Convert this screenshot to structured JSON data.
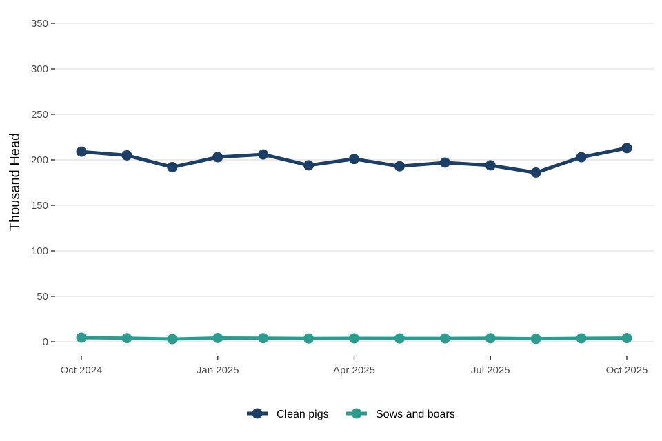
{
  "chart_data": {
    "type": "line",
    "title": "",
    "xlabel": "",
    "ylabel": "Thousand Head",
    "ylim": [
      0,
      350
    ],
    "y_ticks": [
      0,
      50,
      100,
      150,
      200,
      250,
      300,
      350
    ],
    "grid": true,
    "legend_position": "bottom",
    "x": [
      "Oct 2024",
      "Nov 2024",
      "Dec 2024",
      "Jan 2025",
      "Feb 2025",
      "Mar 2025",
      "Apr 2025",
      "May 2025",
      "Jun 2025",
      "Jul 2025",
      "Aug 2025",
      "Sep 2025",
      "Oct 2025"
    ],
    "x_tick_labels": [
      {
        "month_index": 0,
        "label": "Oct 2024"
      },
      {
        "month_index": 3,
        "label": "Jan 2025"
      },
      {
        "month_index": 6,
        "label": "Apr 2025"
      },
      {
        "month_index": 9,
        "label": "Jul 2025"
      },
      {
        "month_index": 12,
        "label": "Oct 2025"
      }
    ],
    "series": [
      {
        "name": "Clean pigs",
        "color": "#1b3f66",
        "values": [
          209,
          205,
          192,
          203,
          206,
          194,
          201,
          193,
          197,
          194,
          186,
          203,
          213
        ]
      },
      {
        "name": "Sows and boars",
        "color": "#2a9d8f",
        "values": [
          4.5,
          4,
          3,
          4.2,
          4,
          3.6,
          3.8,
          3.7,
          3.7,
          3.9,
          3.3,
          3.8,
          4.1
        ]
      }
    ]
  }
}
